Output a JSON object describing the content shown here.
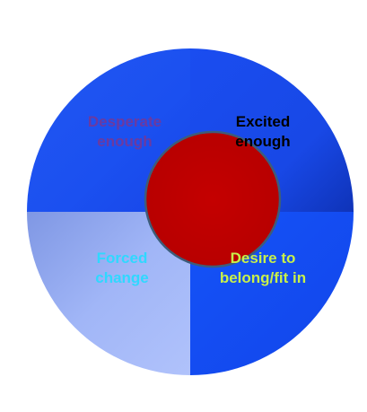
{
  "diagram": {
    "quadrants": [
      {
        "id": "top-left",
        "label": "Desperate\nenough",
        "fill": "#1b4ff0",
        "text_color": "#6b3aa0"
      },
      {
        "id": "top-right",
        "label": "Excited\nenough",
        "fill": "#1640dc",
        "text_color": "#000000"
      },
      {
        "id": "bottom-left",
        "label": "Forced\nchange",
        "fill": "#93a9f0",
        "text_color": "#2fd8ff"
      },
      {
        "id": "bottom-right",
        "label": "Desire to\nbelong/fit in",
        "fill": "#1450f5",
        "text_color": "#c8f04a"
      }
    ],
    "center_circle": {
      "fill": "#c00000",
      "stroke": "#3d5d7a"
    }
  }
}
